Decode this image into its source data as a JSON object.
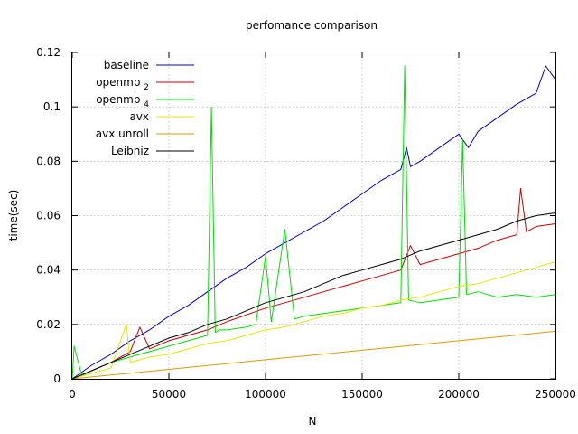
{
  "chart_data": {
    "type": "line",
    "title": "perfomance comparison",
    "xlabel": "N",
    "ylabel": "time(sec)",
    "xlim": [
      0,
      250000
    ],
    "ylim": [
      0,
      0.12
    ],
    "x_ticks": [
      "0",
      "50000",
      "100000",
      "150000",
      "200000",
      "250000"
    ],
    "y_ticks": [
      "0",
      "0.02",
      "0.04",
      "0.06",
      "0.08",
      "0.1",
      "0.12"
    ],
    "grid": true,
    "legend_position": "top-left",
    "series": [
      {
        "name": "baseline",
        "legend_main": "baseline",
        "legend_sub": "",
        "color": "#0000c8",
        "x": [
          0,
          10000,
          20000,
          30000,
          40000,
          50000,
          60000,
          70000,
          80000,
          90000,
          100000,
          110000,
          120000,
          130000,
          140000,
          150000,
          160000,
          170000,
          173000,
          175000,
          180000,
          190000,
          200000,
          205000,
          210000,
          220000,
          230000,
          240000,
          245000,
          250000
        ],
        "y": [
          0,
          0.005,
          0.009,
          0.014,
          0.018,
          0.023,
          0.027,
          0.032,
          0.037,
          0.041,
          0.046,
          0.05,
          0.054,
          0.058,
          0.063,
          0.068,
          0.073,
          0.077,
          0.085,
          0.078,
          0.08,
          0.085,
          0.09,
          0.085,
          0.091,
          0.096,
          0.101,
          0.105,
          0.115,
          0.11
        ]
      },
      {
        "name": "openmp 2",
        "legend_main": "openmp",
        "legend_sub": "2",
        "color": "#c80000",
        "x": [
          0,
          10000,
          20000,
          30000,
          35000,
          40000,
          50000,
          60000,
          70000,
          80000,
          100000,
          110000,
          120000,
          130000,
          150000,
          160000,
          170000,
          175000,
          180000,
          190000,
          200000,
          210000,
          220000,
          230000,
          232000,
          235000,
          240000,
          250000
        ],
        "y": [
          0,
          0.003,
          0.006,
          0.01,
          0.019,
          0.011,
          0.014,
          0.016,
          0.018,
          0.021,
          0.026,
          0.028,
          0.03,
          0.032,
          0.036,
          0.038,
          0.04,
          0.049,
          0.042,
          0.044,
          0.046,
          0.048,
          0.051,
          0.053,
          0.07,
          0.054,
          0.056,
          0.057
        ]
      },
      {
        "name": "openmp 4",
        "legend_main": "openmp",
        "legend_sub": "4",
        "color": "#00e000",
        "x": [
          0,
          1000,
          5000,
          10000,
          20000,
          30000,
          40000,
          50000,
          60000,
          65000,
          70000,
          72000,
          74000,
          76000,
          80000,
          90000,
          95000,
          100000,
          103000,
          110000,
          115000,
          120000,
          130000,
          140000,
          150000,
          160000,
          170000,
          172000,
          174000,
          180000,
          190000,
          200000,
          202000,
          204000,
          210000,
          220000,
          230000,
          240000,
          250000
        ],
        "y": [
          0,
          0.012,
          0.001,
          0.003,
          0.006,
          0.008,
          0.01,
          0.012,
          0.014,
          0.015,
          0.016,
          0.1,
          0.017,
          0.018,
          0.018,
          0.019,
          0.02,
          0.045,
          0.021,
          0.055,
          0.022,
          0.023,
          0.024,
          0.025,
          0.026,
          0.027,
          0.028,
          0.115,
          0.029,
          0.028,
          0.029,
          0.03,
          0.088,
          0.031,
          0.032,
          0.03,
          0.031,
          0.03,
          0.031
        ]
      },
      {
        "name": "avx",
        "legend_main": "avx",
        "legend_sub": "",
        "color": "#e8e800",
        "x": [
          0,
          10000,
          20000,
          28000,
          30000,
          40000,
          50000,
          60000,
          70000,
          80000,
          90000,
          100000,
          110000,
          120000,
          130000,
          140000,
          150000,
          160000,
          170000,
          180000,
          190000,
          200000,
          210000,
          220000,
          230000,
          240000,
          250000
        ],
        "y": [
          0,
          0.002,
          0.004,
          0.02,
          0.006,
          0.008,
          0.009,
          0.011,
          0.013,
          0.014,
          0.016,
          0.018,
          0.019,
          0.021,
          0.023,
          0.024,
          0.026,
          0.027,
          0.029,
          0.03,
          0.032,
          0.034,
          0.035,
          0.037,
          0.039,
          0.041,
          0.043
        ]
      },
      {
        "name": "avx unroll",
        "legend_main": "avx unroll",
        "legend_sub": "",
        "color": "#e09a00",
        "x": [
          0,
          10000,
          20000,
          30000,
          40000,
          50000,
          60000,
          70000,
          80000,
          90000,
          100000,
          110000,
          120000,
          130000,
          140000,
          150000,
          160000,
          170000,
          180000,
          190000,
          200000,
          210000,
          220000,
          230000,
          240000,
          250000
        ],
        "y": [
          0,
          0.0007,
          0.0014,
          0.0021,
          0.0028,
          0.0035,
          0.0042,
          0.0049,
          0.0056,
          0.0063,
          0.007,
          0.0077,
          0.0084,
          0.0091,
          0.0098,
          0.0105,
          0.0112,
          0.0119,
          0.0126,
          0.0133,
          0.014,
          0.0147,
          0.0154,
          0.0161,
          0.0168,
          0.0175
        ]
      },
      {
        "name": "Leibniz",
        "legend_main": "Leibniz",
        "legend_sub": "",
        "color": "#000000",
        "x": [
          0,
          10000,
          20000,
          30000,
          40000,
          50000,
          60000,
          70000,
          80000,
          90000,
          100000,
          110000,
          120000,
          130000,
          140000,
          150000,
          160000,
          170000,
          180000,
          190000,
          200000,
          210000,
          220000,
          230000,
          240000,
          250000
        ],
        "y": [
          0,
          0.003,
          0.006,
          0.009,
          0.012,
          0.015,
          0.017,
          0.02,
          0.022,
          0.025,
          0.028,
          0.03,
          0.032,
          0.035,
          0.038,
          0.04,
          0.042,
          0.044,
          0.047,
          0.049,
          0.051,
          0.053,
          0.055,
          0.058,
          0.06,
          0.061
        ]
      }
    ]
  }
}
